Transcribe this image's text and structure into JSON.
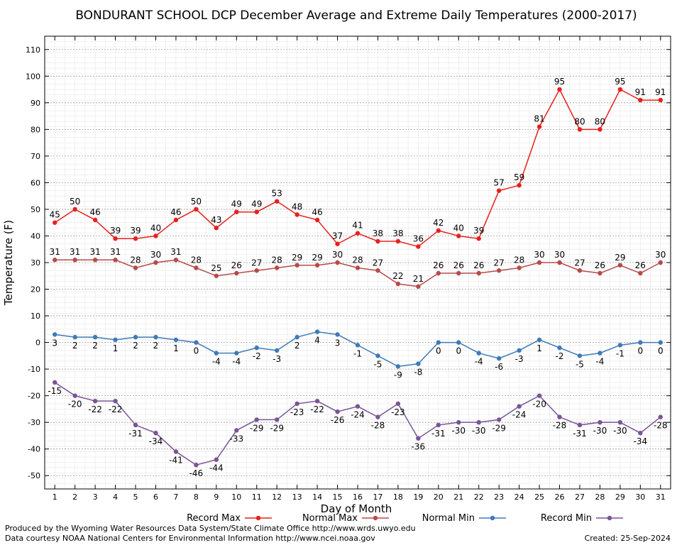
{
  "chart_data": {
    "type": "line",
    "title": "BONDURANT SCHOOL DCP December Average and Extreme Daily Temperatures (2000-2017)",
    "xlabel": "Day of Month",
    "ylabel": "Temperature (F)",
    "ylim": [
      -55,
      115
    ],
    "yticks": [
      -50,
      -40,
      -30,
      -20,
      -10,
      0,
      10,
      20,
      30,
      40,
      50,
      60,
      70,
      80,
      90,
      100,
      110
    ],
    "categories": [
      "1",
      "2",
      "3",
      "4",
      "5",
      "6",
      "7",
      "8",
      "9",
      "10",
      "11",
      "12",
      "13",
      "14",
      "15",
      "16",
      "17",
      "18",
      "19",
      "20",
      "21",
      "22",
      "23",
      "24",
      "25",
      "26",
      "27",
      "28",
      "29",
      "30",
      "31"
    ],
    "grid": true,
    "legend_position": "bottom",
    "series": [
      {
        "name": "Record Max",
        "color": "#e8201c",
        "label_pos": "above",
        "values": [
          45,
          50,
          46,
          39,
          39,
          40,
          46,
          50,
          43,
          49,
          49,
          53,
          48,
          46,
          37,
          41,
          38,
          38,
          36,
          42,
          40,
          39,
          57,
          59,
          81,
          95,
          80,
          80,
          95,
          91,
          91
        ]
      },
      {
        "name": "Normal Max",
        "color": "#b84a4a",
        "label_pos": "above",
        "values": [
          31,
          31,
          31,
          31,
          28,
          30,
          31,
          28,
          25,
          26,
          27,
          28,
          29,
          29,
          30,
          28,
          27,
          22,
          21,
          26,
          26,
          26,
          27,
          28,
          30,
          30,
          27,
          26,
          29,
          26,
          30
        ]
      },
      {
        "name": "Normal Min",
        "color": "#3f7ab8",
        "label_pos": "below",
        "values": [
          3,
          2,
          2,
          1,
          2,
          2,
          1,
          0,
          -4,
          -4,
          -2,
          -3,
          2,
          4,
          3,
          -1,
          -5,
          -9,
          -8,
          0,
          0,
          -4,
          -6,
          -3,
          1,
          -2,
          -5,
          -4,
          -1,
          0,
          0
        ]
      },
      {
        "name": "Record Min",
        "color": "#7a5496",
        "label_pos": "below",
        "values": [
          -15,
          -20,
          -22,
          -22,
          -31,
          -34,
          -41,
          -46,
          -44,
          -33,
          -29,
          -29,
          -23,
          -22,
          -26,
          -24,
          -28,
          -23,
          -36,
          -31,
          -30,
          -30,
          -29,
          -24,
          -20,
          -28,
          -31,
          -30,
          -30,
          -34,
          -28
        ]
      }
    ]
  },
  "footer": {
    "credit_line1": "Produced by the Wyoming Water Resources Data System/State Climate Office http://www.wrds.uwyo.edu",
    "credit_line2": "Data courtesy NOAA National Centers for Environmental Information http://www.ncei.noaa.gov",
    "created": "Created:  25-Sep-2024"
  }
}
